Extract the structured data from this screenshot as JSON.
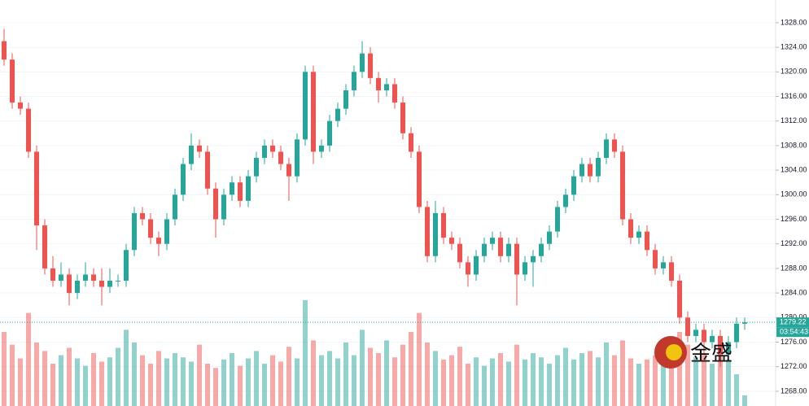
{
  "chart_data": {
    "type": "candlestick",
    "ylim": [
      1265.6,
      1331.7
    ],
    "yticks": [
      {
        "value": 1268,
        "label": "1268.00"
      },
      {
        "value": 1272,
        "label": "1272.00"
      },
      {
        "value": 1276,
        "label": "1276.00"
      },
      {
        "value": 1280,
        "label": "1280.00"
      },
      {
        "value": 1284,
        "label": "1284.00"
      },
      {
        "value": 1288,
        "label": "1288.00"
      },
      {
        "value": 1292,
        "label": "1292.00"
      },
      {
        "value": 1296,
        "label": "1296.00"
      },
      {
        "value": 1300,
        "label": "1300.00"
      },
      {
        "value": 1304,
        "label": "1304.00"
      },
      {
        "value": 1308,
        "label": "1308.00"
      },
      {
        "value": 1312,
        "label": "1312.00"
      },
      {
        "value": 1316,
        "label": "1316.00"
      },
      {
        "value": 1320,
        "label": "1320.00"
      },
      {
        "value": 1324,
        "label": "1324.00"
      },
      {
        "value": 1328,
        "label": "1328.00"
      }
    ],
    "grid": true,
    "up_color": "#26a69a",
    "down_color": "#ef5350",
    "last_price": {
      "value": 1279.22,
      "label": "1279.22"
    },
    "countdown": "03:54:43",
    "watermark": "金盛",
    "vlim": [
      0,
      100
    ],
    "ohlc": [
      [
        1325,
        1327,
        1321,
        1322
      ],
      [
        1322,
        1323,
        1314,
        1315
      ],
      [
        1315,
        1316,
        1313,
        1314
      ],
      [
        1314,
        1315,
        1306,
        1307
      ],
      [
        1307,
        1308,
        1291,
        1295
      ],
      [
        1295,
        1296,
        1287,
        1288
      ],
      [
        1288,
        1290,
        1285,
        1286
      ],
      [
        1286,
        1289,
        1285,
        1287
      ],
      [
        1287,
        1288,
        1282,
        1284
      ],
      [
        1284,
        1287,
        1283,
        1286
      ],
      [
        1286,
        1289,
        1285,
        1287
      ],
      [
        1287,
        1288,
        1285,
        1286
      ],
      [
        1286,
        1288,
        1282,
        1285
      ],
      [
        1285,
        1288,
        1284,
        1286
      ],
      [
        1286,
        1287,
        1285,
        1286
      ],
      [
        1286,
        1292,
        1285,
        1291
      ],
      [
        1291,
        1298,
        1290,
        1297
      ],
      [
        1297,
        1298,
        1295,
        1296
      ],
      [
        1296,
        1297,
        1292,
        1293
      ],
      [
        1293,
        1294,
        1290,
        1292
      ],
      [
        1292,
        1297,
        1291,
        1296
      ],
      [
        1296,
        1301,
        1295,
        1300
      ],
      [
        1300,
        1306,
        1299,
        1305
      ],
      [
        1305,
        1310,
        1304,
        1308
      ],
      [
        1308,
        1309,
        1306,
        1307
      ],
      [
        1307,
        1308,
        1300,
        1301
      ],
      [
        1301,
        1302,
        1293,
        1296
      ],
      [
        1296,
        1301,
        1295,
        1300
      ],
      [
        1300,
        1303,
        1299,
        1302
      ],
      [
        1302,
        1303,
        1298,
        1299
      ],
      [
        1299,
        1304,
        1298,
        1303
      ],
      [
        1303,
        1307,
        1302,
        1306
      ],
      [
        1306,
        1309,
        1305,
        1308
      ],
      [
        1308,
        1309,
        1306,
        1307
      ],
      [
        1307,
        1308,
        1304,
        1305
      ],
      [
        1305,
        1306,
        1299,
        1303
      ],
      [
        1303,
        1310,
        1302,
        1309
      ],
      [
        1309,
        1321,
        1308,
        1320
      ],
      [
        1320,
        1321,
        1305,
        1307
      ],
      [
        1307,
        1309,
        1306,
        1308
      ],
      [
        1308,
        1313,
        1307,
        1312
      ],
      [
        1312,
        1315,
        1311,
        1314
      ],
      [
        1314,
        1318,
        1313,
        1317
      ],
      [
        1317,
        1321,
        1316,
        1320
      ],
      [
        1320,
        1325,
        1319,
        1323
      ],
      [
        1323,
        1324,
        1318,
        1319
      ],
      [
        1319,
        1320,
        1315,
        1317
      ],
      [
        1317,
        1319,
        1316,
        1318
      ],
      [
        1318,
        1319,
        1314,
        1315
      ],
      [
        1315,
        1316,
        1309,
        1310
      ],
      [
        1310,
        1311,
        1306,
        1307
      ],
      [
        1307,
        1308,
        1297,
        1298
      ],
      [
        1298,
        1299,
        1289,
        1290
      ],
      [
        1290,
        1299,
        1289,
        1297
      ],
      [
        1297,
        1298,
        1292,
        1293
      ],
      [
        1293,
        1294,
        1291,
        1292
      ],
      [
        1292,
        1293,
        1288,
        1289
      ],
      [
        1289,
        1290,
        1285,
        1287
      ],
      [
        1287,
        1291,
        1286,
        1290
      ],
      [
        1290,
        1293,
        1289,
        1292
      ],
      [
        1292,
        1294,
        1291,
        1293
      ],
      [
        1293,
        1294,
        1289,
        1290
      ],
      [
        1290,
        1293,
        1289,
        1292
      ],
      [
        1292,
        1293,
        1282,
        1287
      ],
      [
        1287,
        1290,
        1286,
        1289
      ],
      [
        1289,
        1291,
        1285,
        1290
      ],
      [
        1290,
        1293,
        1289,
        1292
      ],
      [
        1292,
        1295,
        1291,
        1294
      ],
      [
        1294,
        1299,
        1293,
        1298
      ],
      [
        1298,
        1301,
        1297,
        1300
      ],
      [
        1300,
        1304,
        1299,
        1303
      ],
      [
        1303,
        1306,
        1302,
        1305
      ],
      [
        1305,
        1306,
        1302,
        1303
      ],
      [
        1303,
        1307,
        1302,
        1306
      ],
      [
        1306,
        1310,
        1305,
        1309
      ],
      [
        1309,
        1310,
        1306,
        1307
      ],
      [
        1307,
        1308,
        1295,
        1296
      ],
      [
        1296,
        1297,
        1292,
        1293
      ],
      [
        1293,
        1295,
        1292,
        1294
      ],
      [
        1294,
        1295,
        1290,
        1291
      ],
      [
        1291,
        1292,
        1287,
        1288
      ],
      [
        1288,
        1290,
        1287,
        1289
      ],
      [
        1289,
        1290,
        1285,
        1286
      ],
      [
        1286,
        1287,
        1279,
        1280
      ],
      [
        1280,
        1281,
        1276,
        1277
      ],
      [
        1277,
        1279,
        1276,
        1278
      ],
      [
        1278,
        1279,
        1274,
        1276
      ],
      [
        1276,
        1278,
        1275,
        1277
      ],
      [
        1277,
        1278,
        1272,
        1274
      ],
      [
        1274,
        1277,
        1273,
        1276
      ],
      [
        1276,
        1280,
        1275,
        1279
      ],
      [
        1279,
        1280,
        1278,
        1279.22
      ]
    ],
    "volume": [
      70,
      58,
      45,
      88,
      60,
      52,
      40,
      48,
      55,
      45,
      38,
      50,
      42,
      46,
      55,
      72,
      60,
      48,
      40,
      52,
      45,
      50,
      46,
      42,
      58,
      40,
      36,
      44,
      50,
      38,
      45,
      52,
      40,
      48,
      42,
      56,
      45,
      100,
      62,
      48,
      52,
      45,
      60,
      48,
      72,
      55,
      50,
      62,
      46,
      58,
      70,
      88,
      60,
      52,
      44,
      48,
      56,
      40,
      46,
      38,
      45,
      50,
      42,
      58,
      44,
      50,
      46,
      40,
      48,
      55,
      44,
      50,
      52,
      46,
      60,
      48,
      62,
      45,
      40,
      44,
      48,
      38,
      52,
      70,
      58,
      46,
      50,
      40,
      54,
      44,
      30,
      10
    ]
  }
}
